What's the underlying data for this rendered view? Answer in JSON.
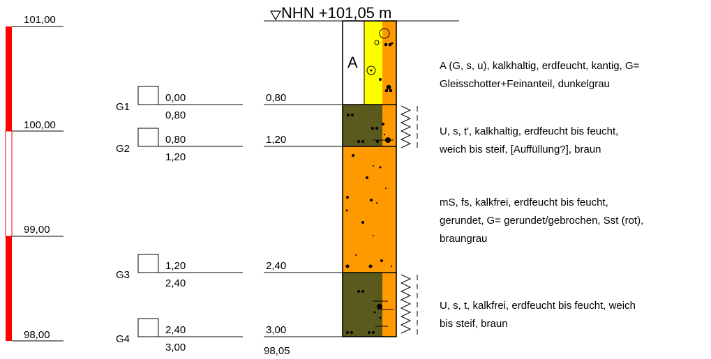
{
  "title": "NHN +101,05 m",
  "elevation_scale": {
    "labels": [
      {
        "id": "s0",
        "text": "101,00"
      },
      {
        "id": "s1",
        "text": "100,00"
      },
      {
        "id": "s2",
        "text": "99,00"
      },
      {
        "id": "s3",
        "text": "98,00"
      }
    ],
    "bar_color": "#ff0000"
  },
  "samples": [
    {
      "name": "G1",
      "top": "0,00",
      "bottom": "0,80"
    },
    {
      "name": "G2",
      "top": "0,80",
      "bottom": "1,20"
    },
    {
      "name": "G3",
      "top": "1,20",
      "bottom": "2,40"
    },
    {
      "name": "G4",
      "top": "2,40",
      "bottom": "3,00"
    }
  ],
  "depths": [
    {
      "text": "0,80"
    },
    {
      "text": "1,20"
    },
    {
      "text": "2,40"
    },
    {
      "text": "3,00"
    }
  ],
  "base_elevation": "98,05",
  "layers": [
    {
      "label": "A",
      "colors": [
        "#ffffff",
        "#ffff00",
        "#ff9900"
      ],
      "description": [
        "A (G, s, u), kalkhaltig, erdfeucht, kantig, G=",
        "Gleisschotter+Feinanteil, dunkelgrau"
      ]
    },
    {
      "label": "",
      "colors": [
        "#5a5a1e",
        "#ff9900"
      ],
      "description": [
        "U, s, t', kalkhaltig, erdfeucht bis feucht,",
        "weich bis steif, [Auffüllung?], braun"
      ]
    },
    {
      "label": "",
      "colors": [
        "#ff9900"
      ],
      "description": [
        "mS, fs, kalkfrei, erdfeucht bis feucht,",
        "gerundet, G= gerundet/gebrochen, Sst (rot),",
        "braungrau"
      ]
    },
    {
      "label": "",
      "colors": [
        "#5a5a1e",
        "#ff9900"
      ],
      "description": [
        "U, s, t, kalkfrei, erdfeucht bis feucht, weich",
        "bis steif, braun"
      ]
    }
  ]
}
